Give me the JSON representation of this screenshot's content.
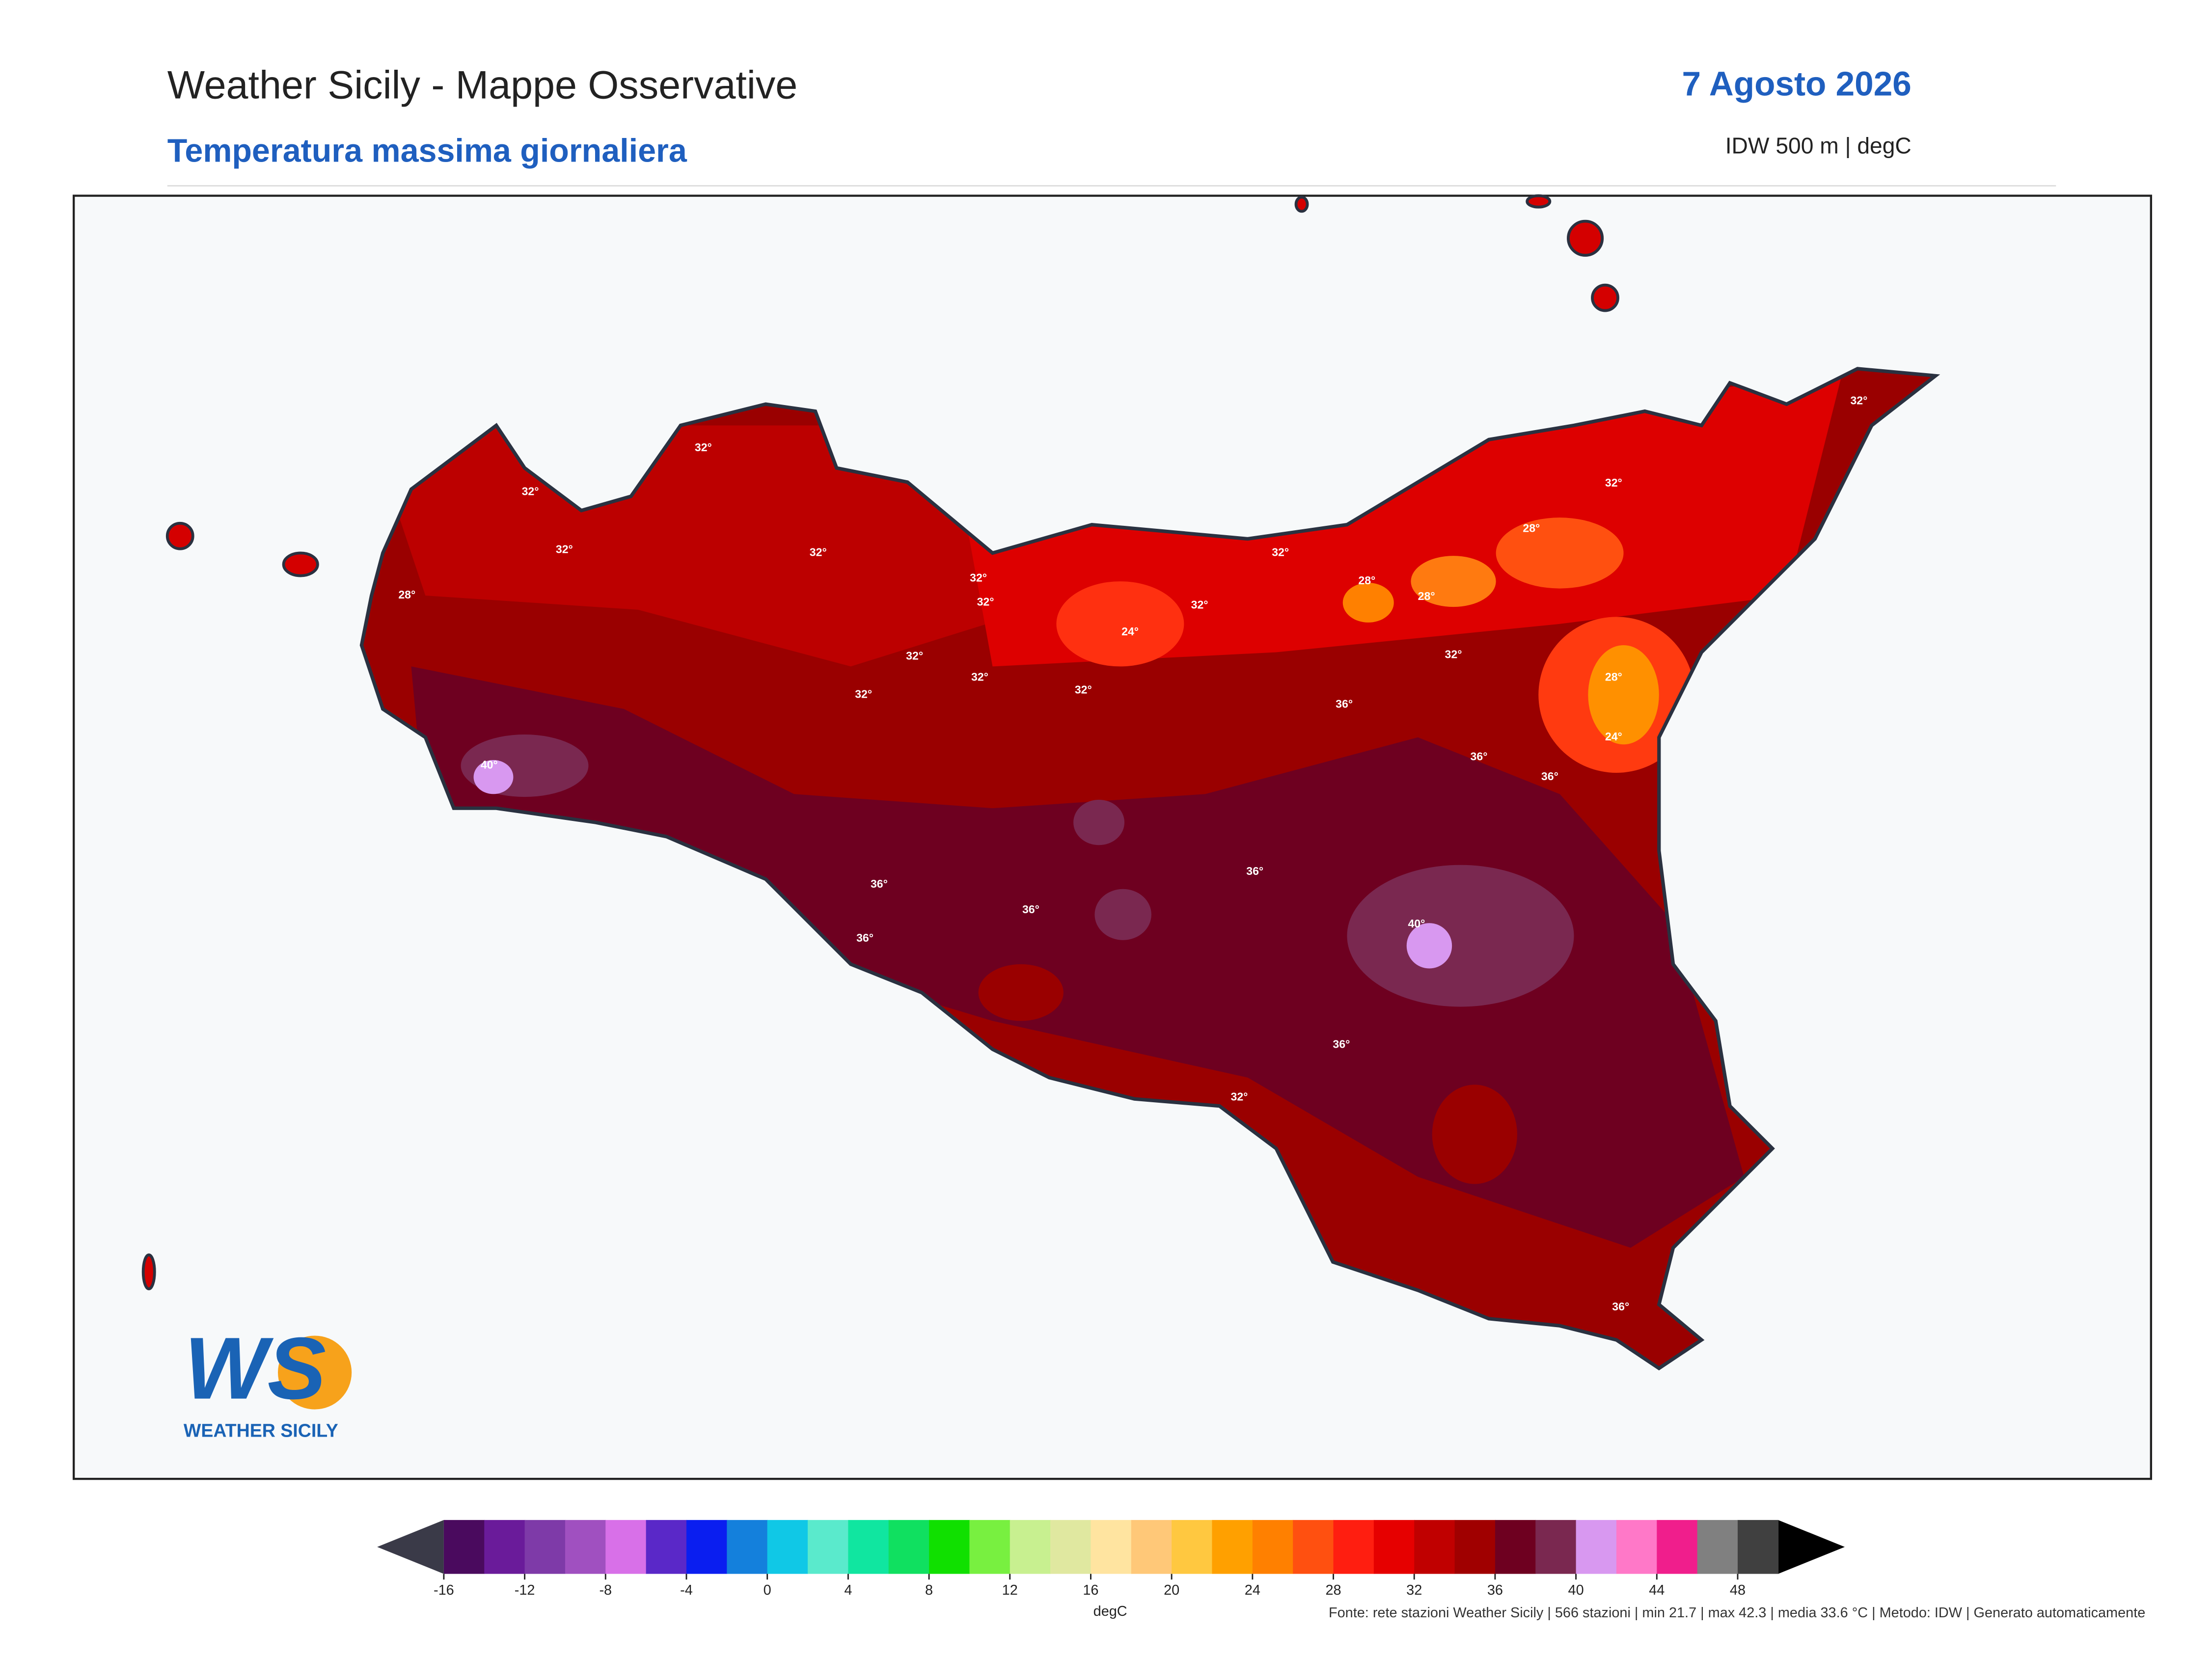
{
  "header": {
    "title": "Weather Sicily - Mappe Osservative",
    "subtitle": "Temperatura massima giornaliera",
    "date": "7 Agosto 2026",
    "method": "IDW 500 m | degC"
  },
  "map": {
    "contour_labels": [
      "32°",
      "32°",
      "32°",
      "32°",
      "32°",
      "32°",
      "24°",
      "32°",
      "32°",
      "28°",
      "28°",
      "28°",
      "32°",
      "32°",
      "32°",
      "32°",
      "32°",
      "32°",
      "36°",
      "32°",
      "28°",
      "24°",
      "36°",
      "36°",
      "40°",
      "36°",
      "36°",
      "36°",
      "40°",
      "36°",
      "36°",
      "32°",
      "36°",
      "28°"
    ]
  },
  "logo": {
    "initials": "WS",
    "name": "WEATHER SICILY"
  },
  "colorbar": {
    "lim": [
      -16,
      50
    ],
    "ticks": [
      -16,
      -12,
      -8,
      -4,
      0,
      4,
      8,
      12,
      16,
      20,
      24,
      28,
      32,
      36,
      40,
      44,
      48
    ],
    "colors": [
      "#4a0a5e",
      "#6a1b9a",
      "#7e3aa8",
      "#a050c0",
      "#d870e8",
      "#5a28c8",
      "#0a1ef0",
      "#1480dc",
      "#10c8e6",
      "#5aeacc",
      "#10e6a0",
      "#10e060",
      "#10e000",
      "#78f040",
      "#c8f090",
      "#e0e8a0",
      "#ffe4a0",
      "#ffc878",
      "#ffc840",
      "#ffa000",
      "#ff8000",
      "#ff5010",
      "#ff1e10",
      "#e60000",
      "#c00000",
      "#a00000",
      "#6e0020",
      "#7a2850",
      "#d898f0",
      "#ff78c8",
      "#f01e8c",
      "#808080",
      "#404040"
    ],
    "under_color": "#3a3a48",
    "over_color": "#000000",
    "label": "degC"
  },
  "footer": "Fonte: rete stazioni Weather Sicily | 566 stazioni | min 21.7 | max 42.3 | media 33.6 °C | Metodo: IDW | Generato automaticamente"
}
